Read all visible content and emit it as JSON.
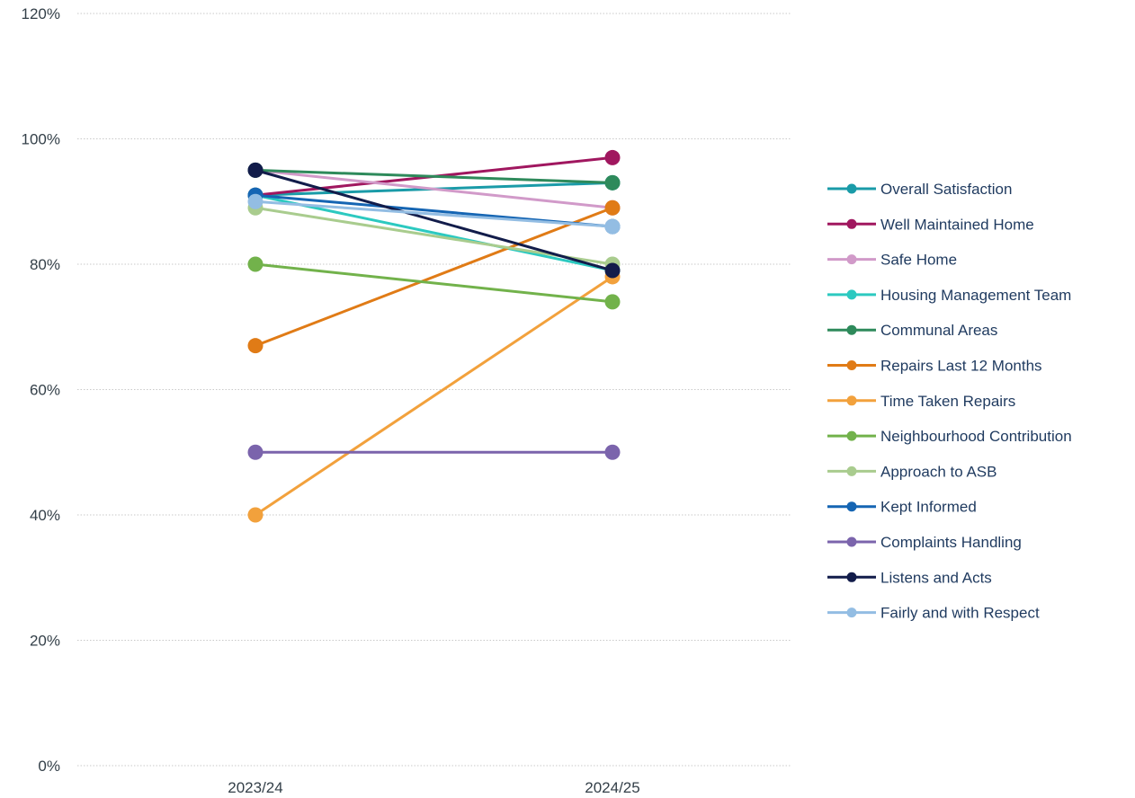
{
  "chart_data": {
    "type": "line",
    "categories": [
      "2023/24",
      "2024/25"
    ],
    "y_ticks": [
      "0%",
      "20%",
      "40%",
      "60%",
      "80%",
      "100%",
      "120%"
    ],
    "ylim": [
      0,
      120
    ],
    "grid": true,
    "legend_position": "right",
    "series": [
      {
        "name": "Overall Satisfaction",
        "color": "#1a9ba8",
        "values": [
          91,
          93
        ]
      },
      {
        "name": "Well Maintained Home",
        "color": "#a0175f",
        "values": [
          91,
          97
        ]
      },
      {
        "name": "Safe Home",
        "color": "#d19ac9",
        "values": [
          95,
          89
        ]
      },
      {
        "name": "Housing Management Team",
        "color": "#2cc9c0",
        "values": [
          91,
          79
        ]
      },
      {
        "name": "Communal Areas",
        "color": "#2e8a5b",
        "values": [
          95,
          93
        ]
      },
      {
        "name": "Repairs Last 12 Months",
        "color": "#e07b16",
        "values": [
          67,
          89
        ]
      },
      {
        "name": "Time Taken Repairs",
        "color": "#f2a13c",
        "values": [
          40,
          78
        ]
      },
      {
        "name": "Neighbourhood Contribution",
        "color": "#72b24b",
        "values": [
          80,
          74
        ]
      },
      {
        "name": "Approach to ASB",
        "color": "#a9cc8e",
        "values": [
          89,
          80
        ]
      },
      {
        "name": "Kept Informed",
        "color": "#1565b3",
        "values": [
          91,
          86
        ]
      },
      {
        "name": "Complaints Handling",
        "color": "#7b64ac",
        "values": [
          50,
          50
        ]
      },
      {
        "name": "Listens and Acts",
        "color": "#121c4a",
        "values": [
          95,
          79
        ]
      },
      {
        "name": "Fairly and with Respect",
        "color": "#93bde3",
        "values": [
          90,
          86
        ]
      }
    ]
  }
}
